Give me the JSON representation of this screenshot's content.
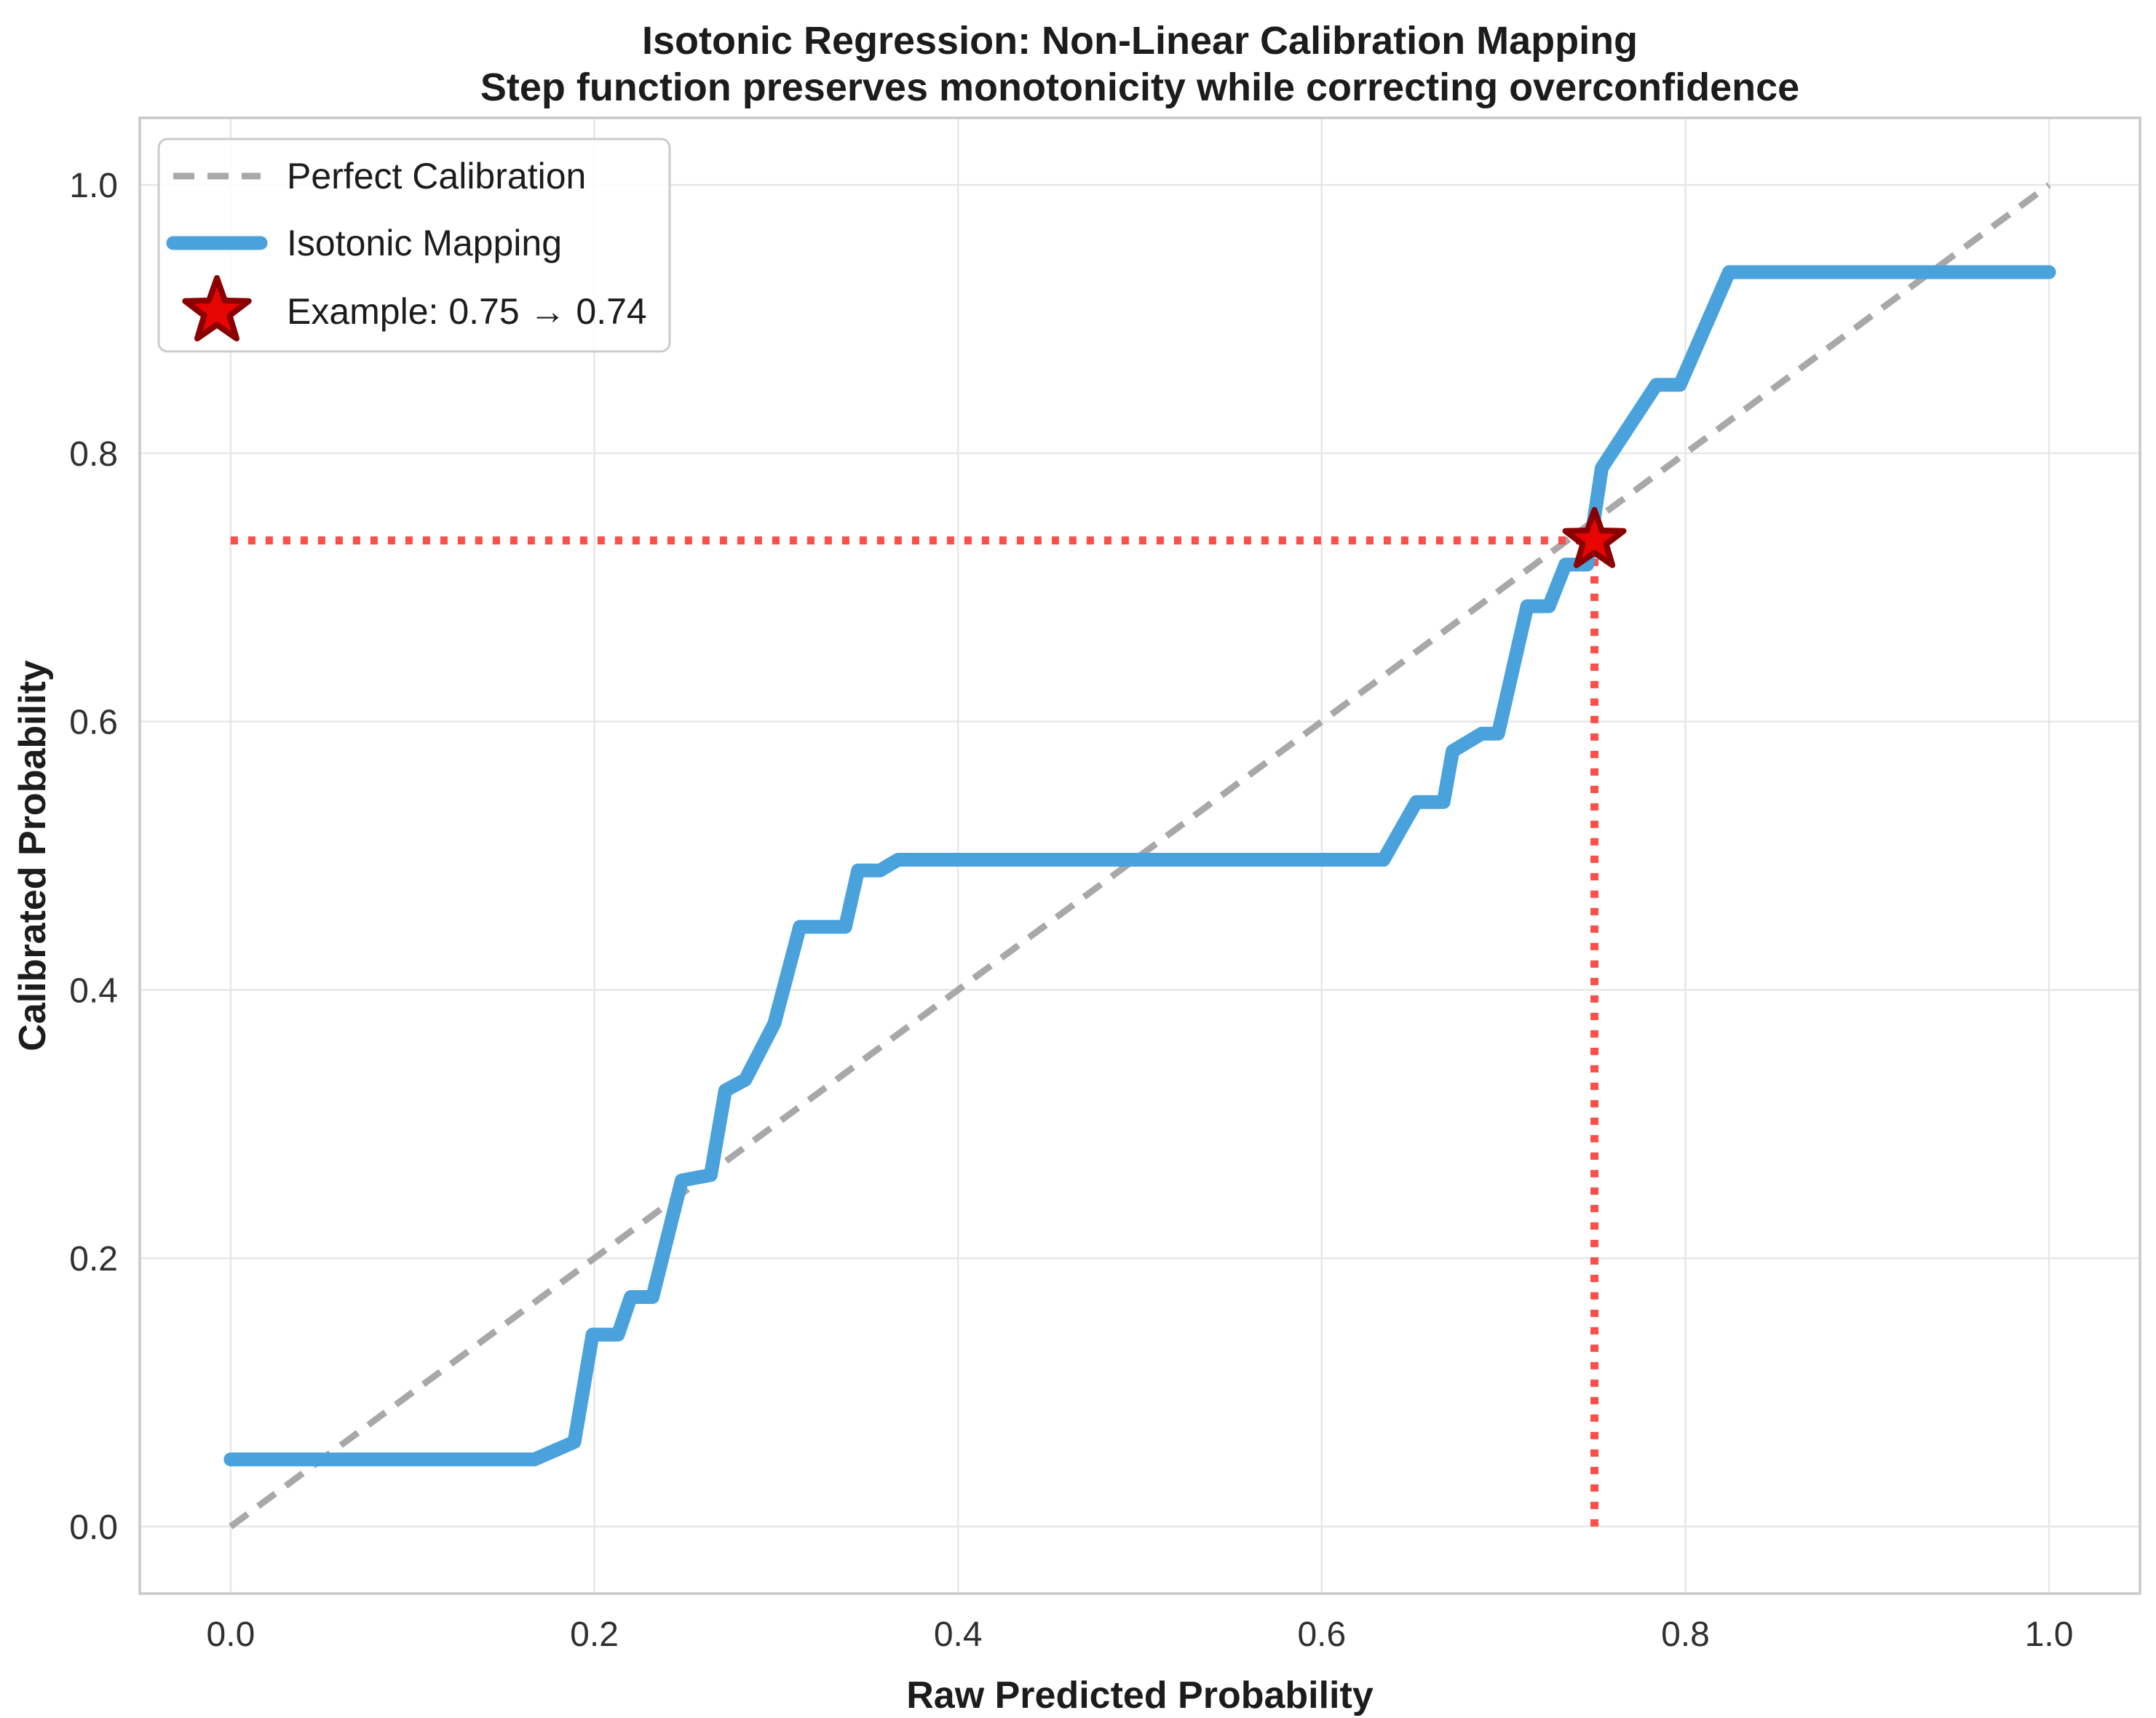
{
  "title": {
    "line1": "Isotonic Regression: Non-Linear Calibration Mapping",
    "line2": "Step function preserves monotonicity while correcting overconfidence"
  },
  "axes": {
    "xlabel": "Raw Predicted Probability",
    "ylabel": "Calibrated Probability",
    "x_tick_labels": [
      "0.0",
      "0.2",
      "0.4",
      "0.6",
      "0.8",
      "1.0"
    ],
    "y_tick_labels": [
      "0.0",
      "0.2",
      "0.4",
      "0.6",
      "0.8",
      "1.0"
    ],
    "x_tick_values": [
      0.0,
      0.2,
      0.4,
      0.6,
      0.8,
      1.0
    ],
    "y_tick_values": [
      0.0,
      0.2,
      0.4,
      0.6,
      0.8,
      1.0
    ],
    "xlim": [
      -0.05,
      1.05
    ],
    "ylim": [
      -0.05,
      1.05
    ],
    "grid": true
  },
  "legend": {
    "position": "upper-left",
    "items": [
      {
        "label": "Perfect Calibration",
        "swatch": "dashed-gray-line"
      },
      {
        "label": "Isotonic Mapping",
        "swatch": "thick-blue-line"
      },
      {
        "label": "Example: 0.75 → 0.74",
        "swatch": "red-star-marker"
      }
    ]
  },
  "colors": {
    "isotonic_line": "#4aa2dc",
    "perfect_line": "#a8a8a8",
    "guide_line": "#fb4f47",
    "star_fill": "#e60500",
    "star_edge": "#8b0000",
    "grid": "#e7e7e7",
    "spine": "#c9c9c9",
    "legend_border": "#cccccc",
    "legend_fill": "rgba(255,255,255,0.85)"
  },
  "chart_data": {
    "type": "line",
    "title": "Isotonic Regression: Non-Linear Calibration Mapping",
    "subtitle": "Step function preserves monotonicity while correcting overconfidence",
    "xlabel": "Raw Predicted Probability",
    "ylabel": "Calibrated Probability",
    "xlim": [
      -0.05,
      1.05
    ],
    "ylim": [
      -0.05,
      1.05
    ],
    "legend_position": "upper left",
    "grid": true,
    "series": [
      {
        "name": "Perfect Calibration",
        "style": "dashed",
        "points": [
          [
            0.0,
            0.0
          ],
          [
            1.0,
            1.0
          ]
        ]
      },
      {
        "name": "Isotonic Mapping",
        "style": "solid-step",
        "points": [
          [
            0.0,
            0.05
          ],
          [
            0.167,
            0.05
          ],
          [
            0.189,
            0.063
          ],
          [
            0.199,
            0.143
          ],
          [
            0.213,
            0.143
          ],
          [
            0.22,
            0.171
          ],
          [
            0.232,
            0.171
          ],
          [
            0.248,
            0.258
          ],
          [
            0.264,
            0.262
          ],
          [
            0.272,
            0.325
          ],
          [
            0.283,
            0.333
          ],
          [
            0.299,
            0.375
          ],
          [
            0.313,
            0.447
          ],
          [
            0.338,
            0.447
          ],
          [
            0.345,
            0.489
          ],
          [
            0.357,
            0.489
          ],
          [
            0.367,
            0.497
          ],
          [
            0.634,
            0.497
          ],
          [
            0.652,
            0.54
          ],
          [
            0.667,
            0.54
          ],
          [
            0.672,
            0.578
          ],
          [
            0.688,
            0.591
          ],
          [
            0.697,
            0.591
          ],
          [
            0.713,
            0.686
          ],
          [
            0.725,
            0.686
          ],
          [
            0.734,
            0.717
          ],
          [
            0.746,
            0.717
          ],
          [
            0.754,
            0.789
          ],
          [
            0.784,
            0.851
          ],
          [
            0.797,
            0.851
          ],
          [
            0.824,
            0.935
          ],
          [
            1.0,
            0.935
          ]
        ]
      }
    ],
    "example_point": {
      "x": 0.75,
      "y": 0.735,
      "raw": "0.75",
      "calibrated": "0.74"
    },
    "guide_lines": [
      {
        "type": "horizontal",
        "from": [
          0.0,
          0.735
        ],
        "to": [
          0.75,
          0.735
        ]
      },
      {
        "type": "vertical",
        "from": [
          0.75,
          0.0
        ],
        "to": [
          0.75,
          0.735
        ]
      }
    ]
  }
}
